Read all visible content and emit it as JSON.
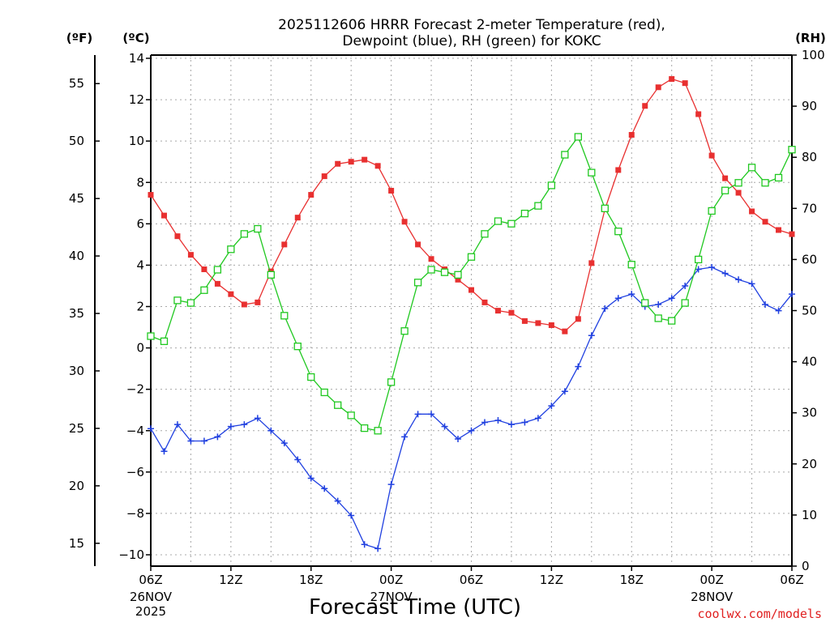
{
  "chart_data": {
    "type": "line",
    "title_line1": "2025112606 HRRR Forecast 2-meter Temperature (red),",
    "title_line2": "Dewpoint (blue), RH (green) for KOKC",
    "xlabel": "Forecast Time (UTC)",
    "credit": "coolwx.com/models",
    "units": {
      "fahrenheit": "(ºF)",
      "celsius": "(ºC)",
      "rh": "(RH)"
    },
    "x_start_hour": 0,
    "x_end_hour": 48,
    "x_ticks": [
      {
        "hour": 0,
        "label": "06Z",
        "sub": [
          "26NOV",
          "2025"
        ]
      },
      {
        "hour": 6,
        "label": "12Z",
        "sub": []
      },
      {
        "hour": 12,
        "label": "18Z",
        "sub": []
      },
      {
        "hour": 18,
        "label": "00Z",
        "sub": [
          "27NOV"
        ]
      },
      {
        "hour": 24,
        "label": "06Z",
        "sub": []
      },
      {
        "hour": 30,
        "label": "12Z",
        "sub": []
      },
      {
        "hour": 36,
        "label": "18Z",
        "sub": []
      },
      {
        "hour": 42,
        "label": "00Z",
        "sub": [
          "28NOV"
        ]
      },
      {
        "hour": 48,
        "label": "06Z",
        "sub": []
      }
    ],
    "celsius_axis": {
      "min": -10,
      "max": 14,
      "ticks": [
        14,
        12,
        10,
        8,
        6,
        4,
        2,
        0,
        -2,
        -4,
        -6,
        -8,
        -10
      ]
    },
    "fahrenheit_ticks": [
      55,
      50,
      45,
      40,
      35,
      30,
      25,
      20,
      15
    ],
    "rh_axis": {
      "min": 0,
      "max": 100,
      "ticks": [
        100,
        90,
        80,
        70,
        60,
        50,
        40,
        30,
        20,
        10,
        0
      ]
    },
    "series": [
      {
        "name": "2-meter Temperature (°C)",
        "axis": "celsius",
        "color": "#e83030",
        "marker": "filled-square",
        "values": [
          7.4,
          6.4,
          5.4,
          4.5,
          3.8,
          3.1,
          2.6,
          2.1,
          2.2,
          3.7,
          5.0,
          6.3,
          7.4,
          8.3,
          8.9,
          9.0,
          9.1,
          8.8,
          7.6,
          6.1,
          5.0,
          4.3,
          3.8,
          3.3,
          2.8,
          2.2,
          1.8,
          1.7,
          1.3,
          1.2,
          1.1,
          0.8,
          1.4,
          4.1,
          6.7,
          8.6,
          10.3,
          11.7,
          12.6,
          13.0,
          12.8,
          11.3,
          9.3,
          8.2,
          7.5,
          6.6,
          6.1,
          5.7,
          5.5
        ]
      },
      {
        "name": "Dewpoint (°C)",
        "axis": "celsius",
        "color": "#2040e0",
        "marker": "plus",
        "values": [
          -3.9,
          -5.0,
          -3.7,
          -4.5,
          -4.5,
          -4.3,
          -3.8,
          -3.7,
          -3.4,
          -4.0,
          -4.6,
          -5.4,
          -6.3,
          -6.8,
          -7.4,
          -8.1,
          -9.5,
          -9.7,
          -6.6,
          -4.3,
          -3.2,
          -3.2,
          -3.8,
          -4.4,
          -4.0,
          -3.6,
          -3.5,
          -3.7,
          -3.6,
          -3.4,
          -2.8,
          -2.1,
          -0.9,
          0.6,
          1.9,
          2.4,
          2.6,
          2.0,
          2.1,
          2.4,
          3.0,
          3.8,
          3.9,
          3.6,
          3.3,
          3.1,
          2.1,
          1.8,
          2.6
        ]
      },
      {
        "name": "RH (%)",
        "axis": "rh",
        "color": "#20c820",
        "marker": "open-square",
        "values": [
          45,
          44,
          52,
          51.5,
          54,
          58,
          62,
          65,
          66,
          57,
          49,
          43,
          37,
          34,
          31.5,
          29.5,
          27,
          26.5,
          36,
          46,
          55.5,
          58,
          57.5,
          57,
          60.5,
          65,
          67.5,
          67,
          69,
          70.5,
          74.5,
          80.5,
          84,
          77,
          70,
          65.5,
          59,
          51.5,
          48.5,
          48,
          51.5,
          60,
          69.5,
          73.5,
          75,
          78,
          75,
          76,
          81.5
        ]
      }
    ]
  }
}
